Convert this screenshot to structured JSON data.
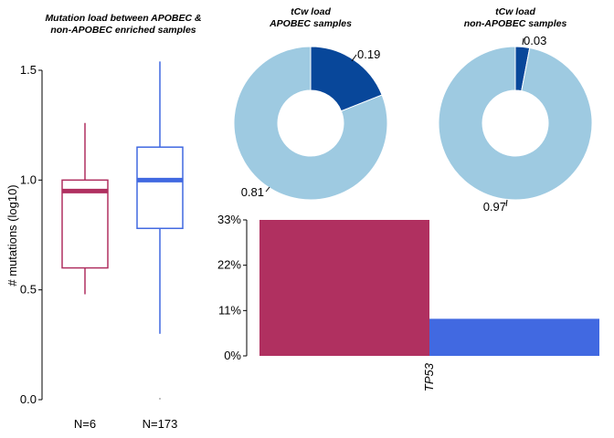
{
  "chart_data": [
    {
      "type": "box",
      "title_lines": [
        "Mutation load between APOBEC &",
        "non-APOBEC enriched samples"
      ],
      "ylabel": "# mutations (log10)",
      "ylim": [
        0,
        1.5
      ],
      "yticks": [
        "0.0",
        "0.5",
        "1.0",
        "1.5"
      ],
      "groups": [
        {
          "label": "N=6",
          "color": "#b03060",
          "whisker_low": 0.48,
          "q1": 0.6,
          "median": 0.95,
          "q3": 1.0,
          "whisker_high": 1.26
        },
        {
          "label": "N=173",
          "color": "#4169e1",
          "whisker_low": 0.3,
          "q1": 0.78,
          "median": 1.0,
          "q3": 1.15,
          "whisker_high": 1.54,
          "outliers": [
            0.0
          ]
        }
      ]
    },
    {
      "type": "pie",
      "donut": true,
      "title_lines": [
        "tCw load",
        "APOBEC samples"
      ],
      "slices": [
        {
          "value": 0.19,
          "label": "0.19",
          "color": "#08479a"
        },
        {
          "value": 0.81,
          "label": "0.81",
          "color": "#9ecae1"
        }
      ]
    },
    {
      "type": "pie",
      "donut": true,
      "title_lines": [
        "tCw load",
        "non-APOBEC samples"
      ],
      "slices": [
        {
          "value": 0.03,
          "label": "0.03",
          "color": "#08479a"
        },
        {
          "value": 0.97,
          "label": "0.97",
          "color": "#9ecae1"
        }
      ]
    },
    {
      "type": "bar",
      "categories": [
        "TP53"
      ],
      "series": [
        {
          "values": [
            33
          ],
          "color": "#b03060"
        },
        {
          "values": [
            9
          ],
          "color": "#4169e1"
        }
      ],
      "ylim": [
        0,
        33
      ],
      "yticks": [
        "0%",
        "11%",
        "22%",
        "33%"
      ]
    }
  ]
}
